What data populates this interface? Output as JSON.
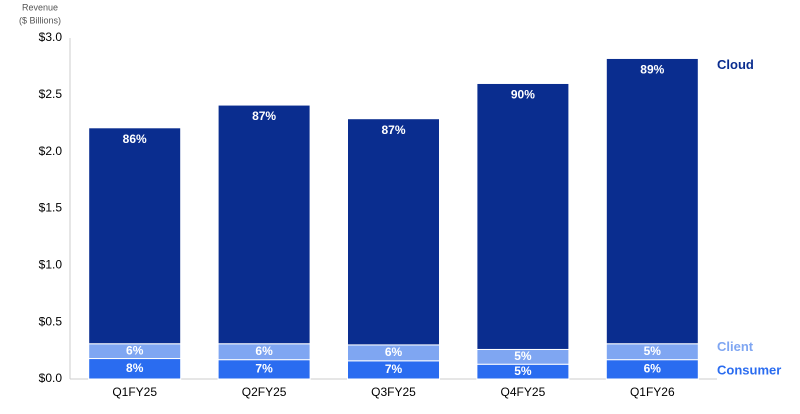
{
  "chart_data": {
    "type": "stacked-bar",
    "ylabel": [
      "Revenue",
      "($ Billions)"
    ],
    "categories": [
      "Q1FY25",
      "Q2FY25",
      "Q3FY25",
      "Q4FY25",
      "Q1FY26"
    ],
    "series": [
      {
        "name": "Consumer",
        "color": "#2a6cf0",
        "values": [
          0.18,
          0.17,
          0.16,
          0.13,
          0.17
        ],
        "labels": [
          "8%",
          "7%",
          "7%",
          "5%",
          "6%"
        ]
      },
      {
        "name": "Client",
        "color": "#7fa6f2",
        "values": [
          0.13,
          0.14,
          0.14,
          0.13,
          0.14
        ],
        "labels": [
          "6%",
          "6%",
          "6%",
          "5%",
          "5%"
        ]
      },
      {
        "name": "Cloud",
        "color": "#0a2d8f",
        "values": [
          1.9,
          2.1,
          1.99,
          2.34,
          2.51
        ],
        "labels": [
          "86%",
          "87%",
          "87%",
          "90%",
          "89%"
        ]
      }
    ],
    "ylim": [
      0,
      3
    ],
    "yticks": [
      {
        "value": 0,
        "label": "$0.0"
      },
      {
        "value": 0.5,
        "label": "$0.5"
      },
      {
        "value": 1,
        "label": "$1.0"
      },
      {
        "value": 1.5,
        "label": "$1.5"
      },
      {
        "value": 2,
        "label": "$2.0"
      },
      {
        "value": 2.5,
        "label": "$2.5"
      },
      {
        "value": 3,
        "label": "$3.0"
      }
    ],
    "grid": false
  }
}
